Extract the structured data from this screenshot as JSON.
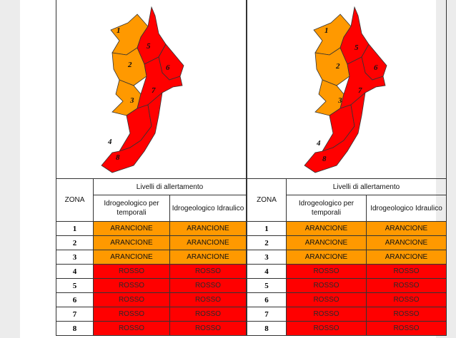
{
  "panels": [
    {
      "zone_header": "ZONA",
      "levels_header": "Livelli di allertamento",
      "col1_header": "Idrogeologico per temporali",
      "col2_header": "Idrogeologico Idraulico",
      "map_zone_labels": [
        "1",
        "2",
        "3",
        "4",
        "5",
        "6",
        "7",
        "8"
      ],
      "rows": [
        {
          "zone": "1",
          "col1": "ARANCIONE",
          "col2": "ARANCIONE",
          "level": "arancione"
        },
        {
          "zone": "2",
          "col1": "ARANCIONE",
          "col2": "ARANCIONE",
          "level": "arancione"
        },
        {
          "zone": "3",
          "col1": "ARANCIONE",
          "col2": "ARANCIONE",
          "level": "arancione"
        },
        {
          "zone": "4",
          "col1": "ROSSO",
          "col2": "ROSSO",
          "level": "rosso"
        },
        {
          "zone": "5",
          "col1": "ROSSO",
          "col2": "ROSSO",
          "level": "rosso"
        },
        {
          "zone": "6",
          "col1": "ROSSO",
          "col2": "ROSSO",
          "level": "rosso"
        },
        {
          "zone": "7",
          "col1": "ROSSO",
          "col2": "ROSSO",
          "level": "rosso"
        },
        {
          "zone": "8",
          "col1": "ROSSO",
          "col2": "ROSSO",
          "level": "rosso"
        }
      ]
    },
    {
      "zone_header": "ZONA",
      "levels_header": "Livelli di allertamento",
      "col1_header": "Idrogeologico per temporali",
      "col2_header": "Idrogeologico Idraulico",
      "map_zone_labels": [
        "1",
        "2",
        "3",
        "4",
        "5",
        "6",
        "7",
        "8"
      ],
      "rows": [
        {
          "zone": "1",
          "col1": "ARANCIONE",
          "col2": "ARANCIONE",
          "level": "arancione"
        },
        {
          "zone": "2",
          "col1": "ARANCIONE",
          "col2": "ARANCIONE",
          "level": "arancione"
        },
        {
          "zone": "3",
          "col1": "ARANCIONE",
          "col2": "ARANCIONE",
          "level": "arancione"
        },
        {
          "zone": "4",
          "col1": "ROSSO",
          "col2": "ROSSO",
          "level": "rosso"
        },
        {
          "zone": "5",
          "col1": "ROSSO",
          "col2": "ROSSO",
          "level": "rosso"
        },
        {
          "zone": "6",
          "col1": "ROSSO",
          "col2": "ROSSO",
          "level": "rosso"
        },
        {
          "zone": "7",
          "col1": "ROSSO",
          "col2": "ROSSO",
          "level": "rosso"
        },
        {
          "zone": "8",
          "col1": "ROSSO",
          "col2": "ROSSO",
          "level": "rosso"
        }
      ]
    }
  ],
  "colors": {
    "arancione": "#ff9900",
    "rosso": "#ff0000"
  }
}
